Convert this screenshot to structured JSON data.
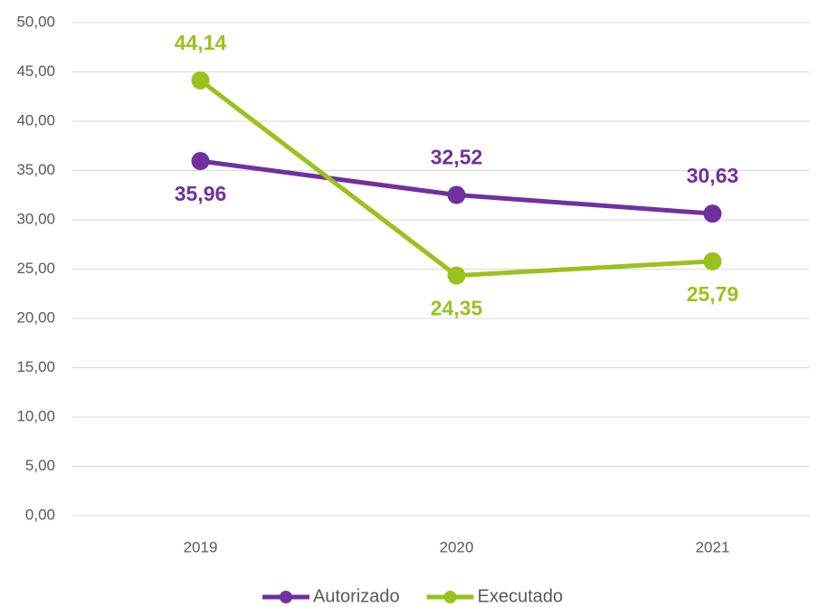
{
  "chart_data": {
    "type": "line",
    "categories": [
      "2019",
      "2020",
      "2021"
    ],
    "series": [
      {
        "name": "Autorizado",
        "color": "#7030a0",
        "values": [
          35.96,
          32.52,
          30.63
        ],
        "value_labels": [
          "35,96",
          "32,52",
          "30,63"
        ]
      },
      {
        "name": "Executado",
        "color": "#99c21c",
        "values": [
          44.14,
          24.35,
          25.79
        ],
        "value_labels": [
          "44,14",
          "24,35",
          "25,79"
        ]
      }
    ],
    "ylim": [
      0,
      50
    ],
    "yticks": [
      {
        "value": 0,
        "label": "0,00"
      },
      {
        "value": 5,
        "label": "5,00"
      },
      {
        "value": 10,
        "label": "10,00"
      },
      {
        "value": 15,
        "label": "15,00"
      },
      {
        "value": 20,
        "label": "20,00"
      },
      {
        "value": 25,
        "label": "25,00"
      },
      {
        "value": 30,
        "label": "30,00"
      },
      {
        "value": 35,
        "label": "35,00"
      },
      {
        "value": 40,
        "label": "40,00"
      },
      {
        "value": 45,
        "label": "45,00"
      },
      {
        "value": 50,
        "label": "50,00"
      }
    ],
    "grid": true,
    "legend": "bottom"
  }
}
